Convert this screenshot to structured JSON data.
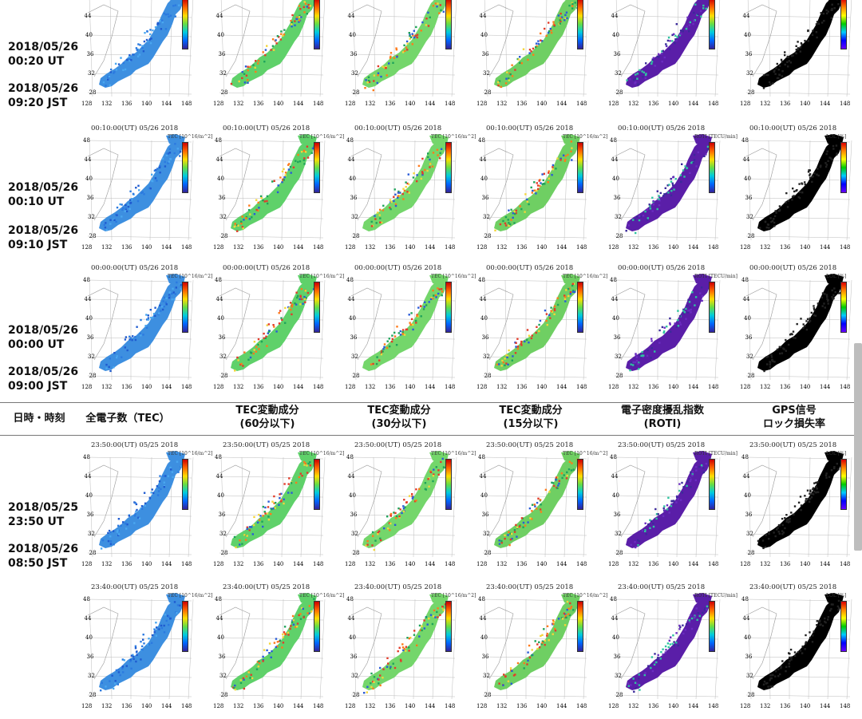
{
  "header": {
    "datetime": "日時・時刻",
    "tec": "全電子数（TEC）",
    "tec60_line1": "TEC変動成分",
    "tec60_line2": "(60分以下)",
    "tec30_line1": "TEC変動成分",
    "tec30_line2": "(30分以下)",
    "tec15_line1": "TEC変動成分",
    "tec15_line2": "(15分以下)",
    "roti_line1": "電子密度擾乱指数",
    "roti_line2": "(ROTI)",
    "lol_line1": "GPS信号",
    "lol_line2": "ロック損失率"
  },
  "rows": [
    {
      "utc_date": "2018/05/26",
      "utc_time": "00:20 UT",
      "jst_date": "2018/05/26",
      "jst_time": "09:20 JST",
      "stamp": ""
    },
    {
      "utc_date": "2018/05/26",
      "utc_time": "00:10 UT",
      "jst_date": "2018/05/26",
      "jst_time": "09:10 JST",
      "stamp": "00:10:00(UT)  05/26 2018"
    },
    {
      "utc_date": "2018/05/26",
      "utc_time": "00:00 UT",
      "jst_date": "2018/05/26",
      "jst_time": "09:00 JST",
      "stamp": "00:00:00(UT)  05/26 2018"
    },
    {
      "utc_date": "2018/05/25",
      "utc_time": "23:50 UT",
      "jst_date": "2018/05/26",
      "jst_time": "08:50 JST",
      "stamp": "23:50:00(UT)  05/25 2018"
    },
    {
      "utc_date": "",
      "utc_time": "",
      "jst_date": "",
      "jst_time": "",
      "stamp": "23:40:00(UT)  05/25 2018"
    }
  ],
  "cbar_titles": {
    "tec": "TEC [10^16/m^2]",
    "tec60": "TEC [10^16/m^2]",
    "tec30": "TEC [10^16/m^2]",
    "tec15": "TEC [10^16/m^2]",
    "roti": "ROTI [TECU/min]",
    "lol": "LOL [%]"
  },
  "axis": {
    "lat": [
      "48",
      "44",
      "40",
      "36",
      "32",
      "28"
    ],
    "lon": [
      "128",
      "132",
      "136",
      "140",
      "144",
      "148"
    ]
  },
  "colors": {
    "tec": "#3d8fe0",
    "tec_dark": "#2a6fd0",
    "tec60": "#5fd16a",
    "tec30": "#74d66b",
    "tec15": "#6fcf63",
    "roti": "#5a1ea8",
    "lol": "#000000",
    "rule": "#777777",
    "scrollbar": "#bdbdbd"
  }
}
